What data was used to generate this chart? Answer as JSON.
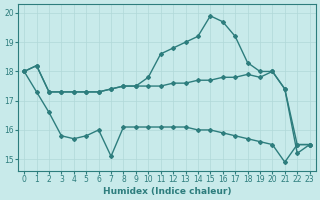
{
  "xlabel": "Humidex (Indice chaleur)",
  "background_color": "#c8eaea",
  "grid_color": "#b0d8d8",
  "line_color": "#2d7d7d",
  "xlim": [
    -0.5,
    23.5
  ],
  "ylim": [
    14.6,
    20.3
  ],
  "yticks": [
    15,
    16,
    17,
    18,
    19,
    20
  ],
  "xticks": [
    0,
    1,
    2,
    3,
    4,
    5,
    6,
    7,
    8,
    9,
    10,
    11,
    12,
    13,
    14,
    15,
    16,
    17,
    18,
    19,
    20,
    21,
    22,
    23
  ],
  "series": [
    {
      "x": [
        0,
        1,
        2,
        3,
        4,
        5,
        6,
        7,
        8,
        9,
        10,
        11,
        12,
        13,
        14,
        15,
        16,
        17,
        18,
        19,
        20,
        21,
        22,
        23
      ],
      "y": [
        18.0,
        18.2,
        17.3,
        17.3,
        17.3,
        17.3,
        17.3,
        17.4,
        17.5,
        17.5,
        17.5,
        17.5,
        17.6,
        17.6,
        17.7,
        17.7,
        17.8,
        17.8,
        17.9,
        17.8,
        18.0,
        17.4,
        15.5,
        15.5
      ]
    },
    {
      "x": [
        0,
        1,
        2,
        3,
        4,
        5,
        6,
        7,
        8,
        9,
        10,
        11,
        12,
        13,
        14,
        15,
        16,
        17,
        18,
        19,
        20,
        21,
        22,
        23
      ],
      "y": [
        18.0,
        18.2,
        17.3,
        17.3,
        17.3,
        17.3,
        17.3,
        17.4,
        17.5,
        17.5,
        17.8,
        18.6,
        18.8,
        19.0,
        19.2,
        19.9,
        19.7,
        19.2,
        18.3,
        18.0,
        18.0,
        17.4,
        15.2,
        15.5
      ]
    },
    {
      "x": [
        0,
        1,
        2,
        3,
        4,
        5,
        6,
        7,
        8,
        9,
        10,
        11,
        12,
        13,
        14,
        15,
        16,
        17,
        18,
        19,
        20,
        21,
        22,
        23
      ],
      "y": [
        18.0,
        17.3,
        16.6,
        15.8,
        15.7,
        15.8,
        16.0,
        15.1,
        16.1,
        16.1,
        16.1,
        16.1,
        16.1,
        16.1,
        16.0,
        16.0,
        15.9,
        15.8,
        15.7,
        15.6,
        15.5,
        14.9,
        15.5,
        15.5
      ]
    }
  ]
}
